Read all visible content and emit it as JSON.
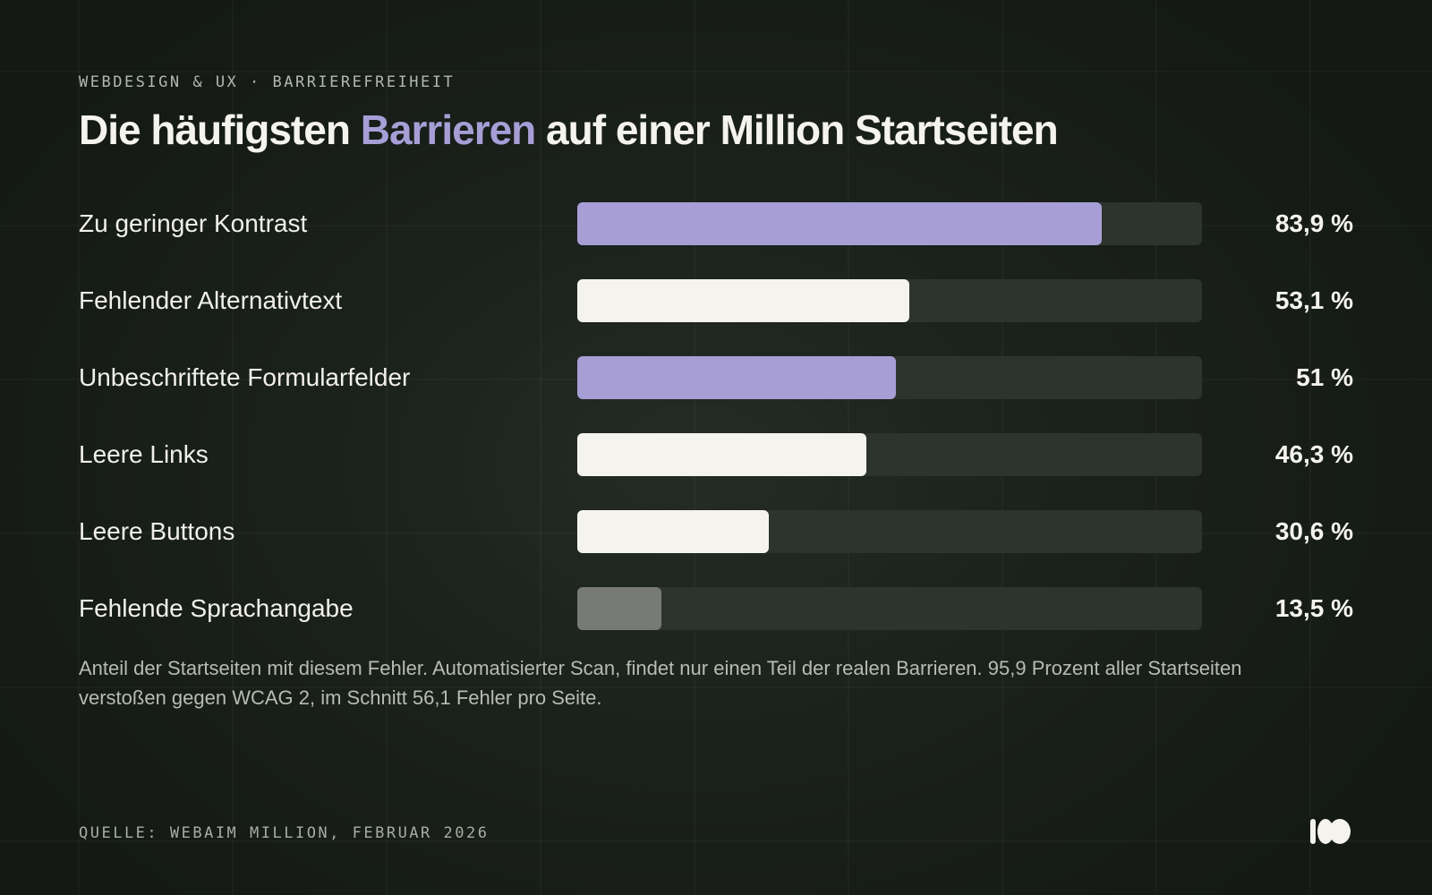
{
  "eyebrow": "WEBDESIGN & UX · BARRIEREFREIHEIT",
  "title": {
    "before": "Die häufigsten ",
    "accent": "Barrieren",
    "after": " auf einer Million Startseiten"
  },
  "note": "Anteil der Startseiten mit diesem Fehler. Automatisierter Scan, findet nur einen Teil der realen Barrieren. 95,9 Prozent aller Startseiten verstoßen gegen WCAG 2, im Schnitt 56,1 Fehler pro Seite.",
  "source": "QUELLE: WEBAIM MILLION, FEBRUAR 2026",
  "colors": {
    "background": "#141914",
    "accent": "#a79ed6",
    "bar_light": "#f5f3ee",
    "bar_muted": "#777a77",
    "track": "#2d342d"
  },
  "chart_data": {
    "type": "bar",
    "orientation": "horizontal",
    "xlim": [
      0,
      100
    ],
    "grid": false,
    "categories": [
      "Zu geringer Kontrast",
      "Fehlender Alternativtext",
      "Unbeschriftete Formularfelder",
      "Leere Links",
      "Leere Buttons",
      "Fehlende Sprachangabe"
    ],
    "values": [
      83.9,
      53.1,
      51,
      46.3,
      30.6,
      13.5
    ],
    "value_labels": [
      "83,9 %",
      "53,1 %",
      "51 %",
      "46,3 %",
      "30,6 %",
      "13,5 %"
    ],
    "bar_colors": [
      "#a79ed6",
      "#f5f3ee",
      "#a79ed6",
      "#f5f3ee",
      "#f5f3ee",
      "#777a77"
    ]
  }
}
